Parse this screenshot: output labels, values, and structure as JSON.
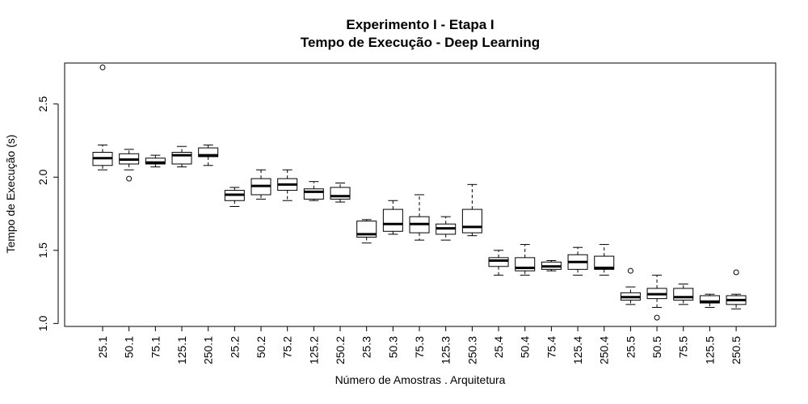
{
  "chart_data": {
    "type": "boxplot",
    "title": "Experimento I - Etapa I",
    "subtitle": "Tempo de Execução - Deep Learning",
    "xlabel": "Número de Amostras . Arquitetura",
    "ylabel": "Tempo de Execução (s)",
    "ylim": [
      0.98,
      2.78
    ],
    "yticks": [
      "1.0",
      "1.5",
      "2.0",
      "2.5"
    ],
    "grid": false,
    "categories": [
      "25.1",
      "50.1",
      "75.1",
      "125.1",
      "250.1",
      "25.2",
      "50.2",
      "75.2",
      "125.2",
      "250.2",
      "25.3",
      "50.3",
      "75.3",
      "125.3",
      "250.3",
      "25.4",
      "50.4",
      "75.4",
      "125.4",
      "250.4",
      "25.5",
      "50.5",
      "75.5",
      "125.5",
      "250.5"
    ],
    "boxes": [
      {
        "min": 2.05,
        "q1": 2.08,
        "median": 2.13,
        "q3": 2.17,
        "max": 2.22,
        "outliers": [
          2.75
        ]
      },
      {
        "min": 2.05,
        "q1": 2.09,
        "median": 2.12,
        "q3": 2.16,
        "max": 2.19,
        "outliers": [
          1.99
        ]
      },
      {
        "min": 2.07,
        "q1": 2.09,
        "median": 2.1,
        "q3": 2.13,
        "max": 2.15,
        "outliers": []
      },
      {
        "min": 2.07,
        "q1": 2.09,
        "median": 2.15,
        "q3": 2.17,
        "max": 2.21,
        "outliers": []
      },
      {
        "min": 2.08,
        "q1": 2.14,
        "median": 2.15,
        "q3": 2.2,
        "max": 2.22,
        "outliers": []
      },
      {
        "min": 1.8,
        "q1": 1.84,
        "median": 1.88,
        "q3": 1.91,
        "max": 1.93,
        "outliers": []
      },
      {
        "min": 1.85,
        "q1": 1.88,
        "median": 1.94,
        "q3": 1.99,
        "max": 2.05,
        "outliers": []
      },
      {
        "min": 1.84,
        "q1": 1.91,
        "median": 1.95,
        "q3": 1.99,
        "max": 2.05,
        "outliers": []
      },
      {
        "min": 1.84,
        "q1": 1.85,
        "median": 1.9,
        "q3": 1.92,
        "max": 1.97,
        "outliers": []
      },
      {
        "min": 1.83,
        "q1": 1.85,
        "median": 1.87,
        "q3": 1.93,
        "max": 1.96,
        "outliers": []
      },
      {
        "min": 1.55,
        "q1": 1.59,
        "median": 1.61,
        "q3": 1.7,
        "max": 1.71,
        "outliers": []
      },
      {
        "min": 1.61,
        "q1": 1.63,
        "median": 1.68,
        "q3": 1.78,
        "max": 1.84,
        "outliers": []
      },
      {
        "min": 1.57,
        "q1": 1.62,
        "median": 1.68,
        "q3": 1.73,
        "max": 1.88,
        "outliers": []
      },
      {
        "min": 1.57,
        "q1": 1.61,
        "median": 1.65,
        "q3": 1.68,
        "max": 1.73,
        "outliers": []
      },
      {
        "min": 1.6,
        "q1": 1.62,
        "median": 1.66,
        "q3": 1.78,
        "max": 1.95,
        "outliers": []
      },
      {
        "min": 1.33,
        "q1": 1.39,
        "median": 1.43,
        "q3": 1.45,
        "max": 1.5,
        "outliers": []
      },
      {
        "min": 1.33,
        "q1": 1.36,
        "median": 1.38,
        "q3": 1.45,
        "max": 1.54,
        "outliers": []
      },
      {
        "min": 1.36,
        "q1": 1.37,
        "median": 1.39,
        "q3": 1.42,
        "max": 1.43,
        "outliers": []
      },
      {
        "min": 1.33,
        "q1": 1.37,
        "median": 1.42,
        "q3": 1.47,
        "max": 1.52,
        "outliers": []
      },
      {
        "min": 1.33,
        "q1": 1.37,
        "median": 1.38,
        "q3": 1.46,
        "max": 1.54,
        "outliers": []
      },
      {
        "min": 1.13,
        "q1": 1.16,
        "median": 1.18,
        "q3": 1.21,
        "max": 1.25,
        "outliers": [
          1.36
        ]
      },
      {
        "min": 1.11,
        "q1": 1.17,
        "median": 1.2,
        "q3": 1.24,
        "max": 1.33,
        "outliers": [
          1.04
        ]
      },
      {
        "min": 1.13,
        "q1": 1.16,
        "median": 1.18,
        "q3": 1.24,
        "max": 1.27,
        "outliers": []
      },
      {
        "min": 1.11,
        "q1": 1.14,
        "median": 1.15,
        "q3": 1.19,
        "max": 1.2,
        "outliers": []
      },
      {
        "min": 1.1,
        "q1": 1.13,
        "median": 1.16,
        "q3": 1.19,
        "max": 1.2,
        "outliers": [
          1.35
        ]
      }
    ]
  }
}
